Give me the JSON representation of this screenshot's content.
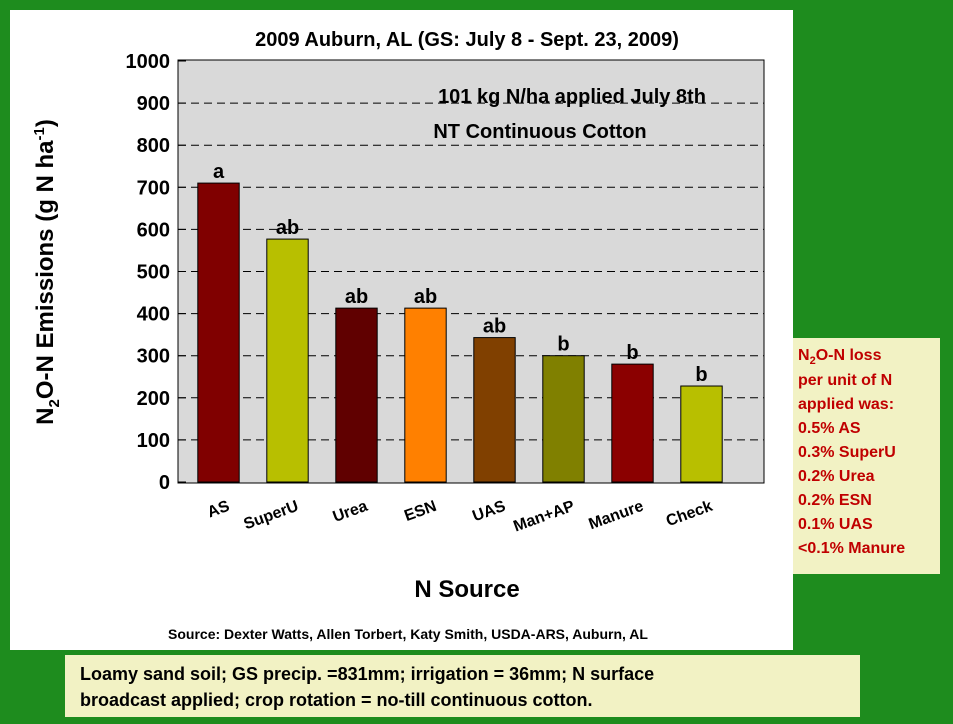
{
  "chart_data": {
    "type": "bar",
    "title": "2009 Auburn, AL (GS:  July 8 - Sept. 23, 2009)",
    "annotations": [
      "101 kg N/ha applied July 8th",
      "NT Continuous Cotton"
    ],
    "ylabel": [
      "N",
      "2",
      "O-N Emissions (g N ha",
      "-1",
      ")"
    ],
    "xlabel": "N Source",
    "categories": [
      "AS",
      "SuperU",
      "Urea",
      "ESN",
      "UAS",
      "Man+AP",
      "Manure",
      "Check"
    ],
    "values": [
      710,
      577,
      413,
      413,
      343,
      300,
      280,
      228
    ],
    "colors": [
      "#800000",
      "#b8bf00",
      "#600000",
      "#ff8000",
      "#804000",
      "#808000",
      "#8b0000",
      "#b8bf00"
    ],
    "letters": [
      "a",
      "ab",
      "ab",
      "ab",
      "ab",
      "b",
      "b",
      "b"
    ],
    "ylim": [
      0,
      1000
    ],
    "yticks": [
      0,
      100,
      200,
      300,
      400,
      500,
      600,
      700,
      800,
      900,
      1000
    ],
    "grid": true
  },
  "source": "Source: Dexter Watts, Allen Torbert, Katy Smith, USDA-ARS, Auburn, AL",
  "side_note": {
    "first": [
      "N",
      "2",
      "O-N loss"
    ],
    "lines": [
      "per unit of N",
      "applied was:",
      "0.5% AS",
      "0.3% SuperU",
      "0.2% Urea",
      "0.2% ESN",
      "0.1%  UAS",
      "<0.1% Manure"
    ]
  },
  "footnote": [
    "Loamy sand soil; GS precip. =831mm; irrigation = 36mm; N surface",
    "broadcast applied; crop rotation = no-till continuous cotton."
  ]
}
